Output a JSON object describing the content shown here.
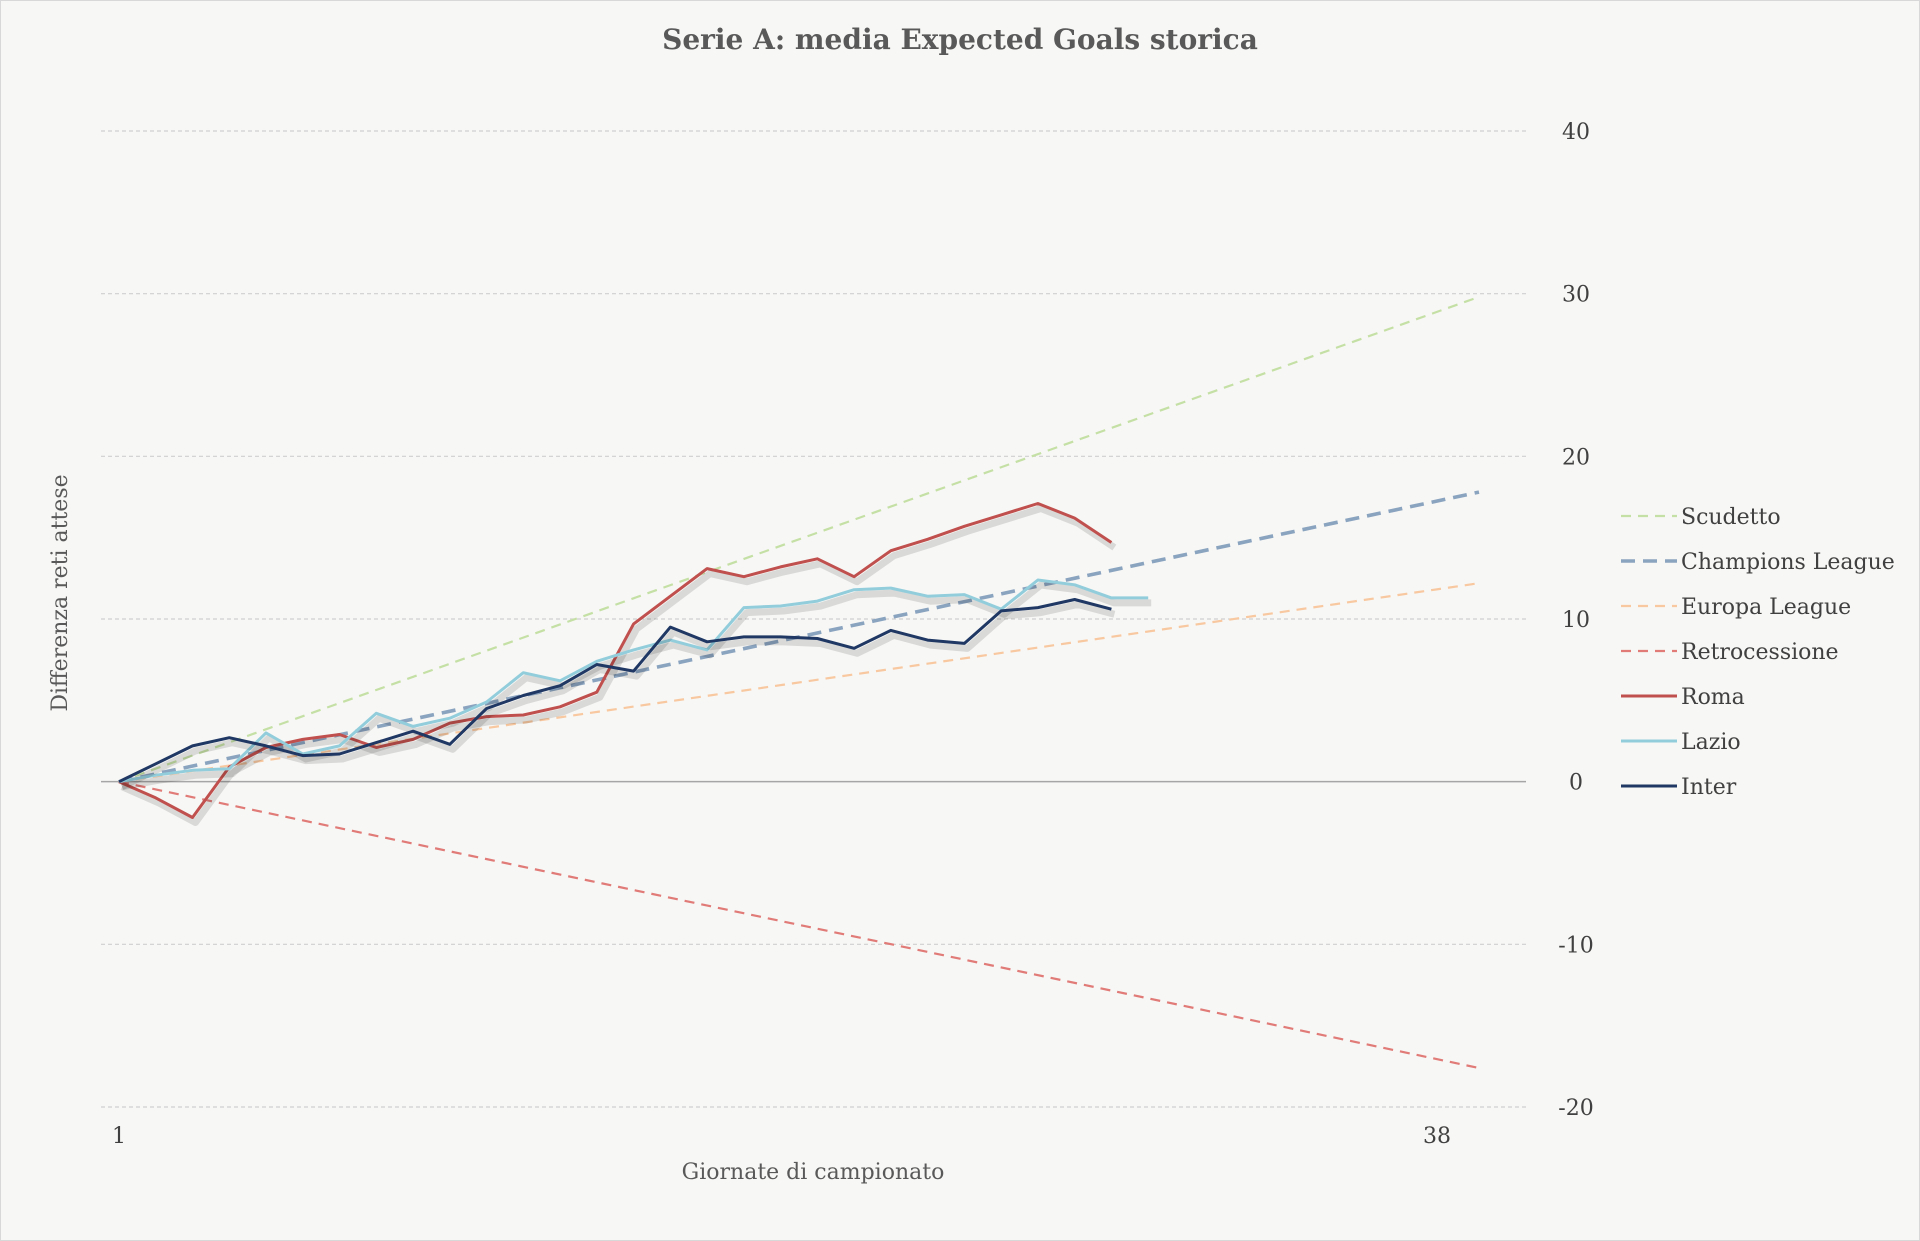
{
  "chart_data": {
    "type": "line",
    "title": "Serie A: media Expected Goals storica",
    "xlabel": "Giornate di campionato",
    "ylabel": "Differenza reti attese",
    "xlim": [
      1,
      38
    ],
    "ylim": [
      -20,
      40
    ],
    "x_ticks": [
      "1",
      "38"
    ],
    "y_ticks": [
      40,
      30,
      20,
      10,
      0,
      -10,
      -20
    ],
    "y_tick_labels": [
      "40",
      "30",
      "20",
      "10",
      "0",
      "-10",
      "-20"
    ],
    "legend_position": "right",
    "series": [
      {
        "name": "Scudetto",
        "color": "#c5e0a5",
        "dash": "dashed",
        "x": [
          1,
          38
        ],
        "y": [
          0,
          29.8
        ]
      },
      {
        "name": "Champions League",
        "color": "#8aa3bf",
        "dash": "dashed-thick",
        "x": [
          1,
          38
        ],
        "y": [
          0,
          17.8
        ]
      },
      {
        "name": "Europa League",
        "color": "#f8c8a0",
        "dash": "dashed",
        "x": [
          1,
          38
        ],
        "y": [
          0,
          12.2
        ]
      },
      {
        "name": "Retrocessione",
        "color": "#e07b78",
        "dash": "dashed",
        "x": [
          1,
          38
        ],
        "y": [
          0,
          -17.6
        ]
      },
      {
        "name": "Roma",
        "color": "#c0504d",
        "dash": "solid",
        "x": [
          1,
          2,
          3,
          4,
          5,
          6,
          7,
          8,
          9,
          10,
          11,
          12,
          13,
          14,
          15,
          16,
          17,
          18,
          19,
          20,
          21,
          22,
          23,
          24,
          25,
          26,
          27,
          28
        ],
        "y": [
          0,
          -1,
          -2.2,
          0.9,
          2.1,
          2.6,
          2.9,
          2.1,
          2.6,
          3.6,
          4.0,
          4.1,
          4.6,
          5.5,
          9.7,
          11.4,
          13.1,
          12.6,
          13.2,
          13.7,
          12.6,
          14.2,
          14.9,
          15.7,
          16.4,
          17.1,
          16.2,
          14.7
        ]
      },
      {
        "name": "Lazio",
        "color": "#92cddc",
        "dash": "solid",
        "x": [
          1,
          2,
          3,
          4,
          5,
          6,
          7,
          8,
          9,
          10,
          11,
          12,
          13,
          14,
          15,
          16,
          17,
          18,
          19,
          20,
          21,
          22,
          23,
          24,
          25,
          26,
          27,
          28,
          29
        ],
        "y": [
          0,
          0.4,
          0.7,
          0.8,
          3.0,
          1.7,
          2.2,
          4.2,
          3.4,
          3.9,
          4.9,
          6.7,
          6.2,
          7.4,
          8.1,
          8.7,
          8.1,
          10.7,
          10.8,
          11.1,
          11.8,
          11.9,
          11.4,
          11.5,
          10.6,
          12.4,
          12.1,
          11.3,
          11.3
        ]
      },
      {
        "name": "Inter",
        "color": "#1f3864",
        "dash": "solid",
        "x": [
          1,
          2,
          3,
          4,
          5,
          6,
          7,
          8,
          9,
          10,
          11,
          12,
          13,
          14,
          15,
          16,
          17,
          18,
          19,
          20,
          21,
          22,
          23,
          24,
          25,
          26,
          27,
          28
        ],
        "y": [
          0,
          1.1,
          2.2,
          2.7,
          2.2,
          1.6,
          1.7,
          2.4,
          3.1,
          2.3,
          4.5,
          5.3,
          5.9,
          7.2,
          6.8,
          9.5,
          8.6,
          8.9,
          8.9,
          8.8,
          8.2,
          9.3,
          8.7,
          8.5,
          10.5,
          10.7,
          11.2,
          10.6
        ]
      }
    ]
  }
}
